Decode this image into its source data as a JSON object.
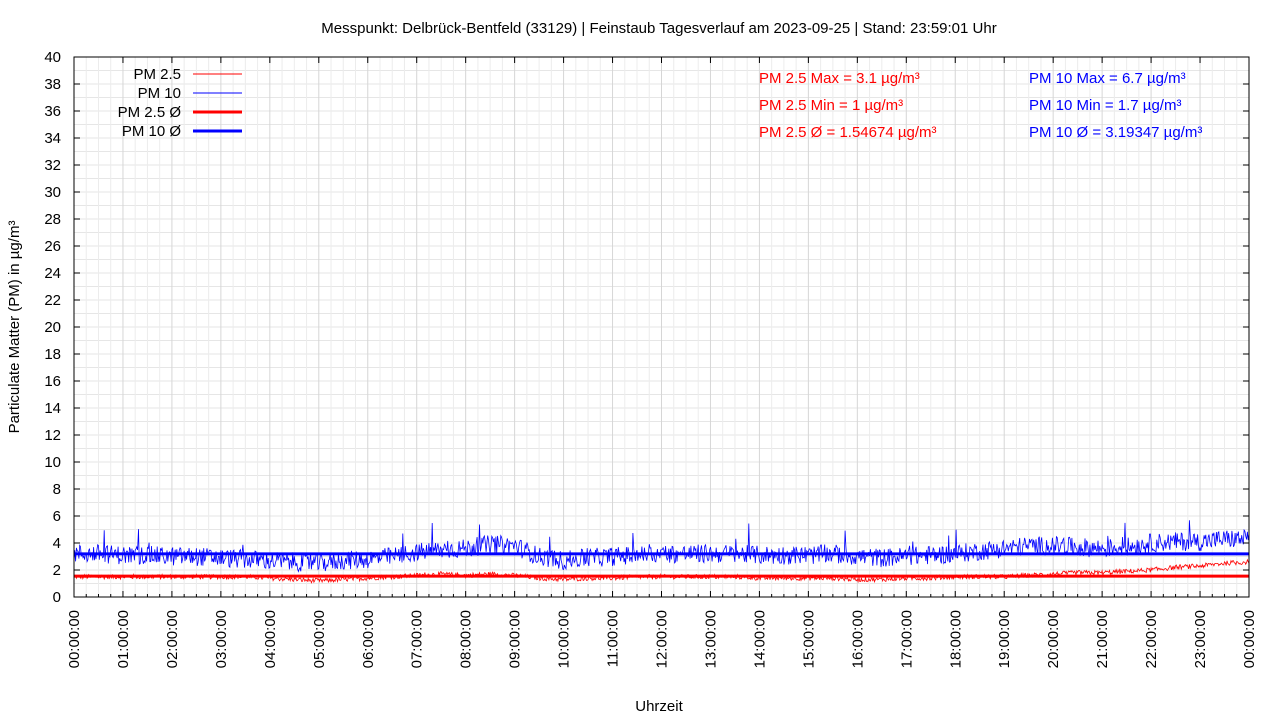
{
  "chart_data": {
    "type": "line",
    "title": "Messpunkt: Delbrück-Bentfeld (33129) | Feinstaub Tagesverlauf am 2023-09-25 | Stand: 23:59:01 Uhr",
    "xlabel": "Uhrzeit",
    "ylabel": "Particulate Matter (PM) in µg/m³",
    "xlim": [
      "00:00:00",
      "24:00:00"
    ],
    "ylim": [
      0,
      40
    ],
    "y_ticks": [
      0,
      2,
      4,
      6,
      8,
      10,
      12,
      14,
      16,
      18,
      20,
      22,
      24,
      26,
      28,
      30,
      32,
      34,
      36,
      38,
      40
    ],
    "x_ticks": [
      "00:00:00",
      "01:00:00",
      "02:00:00",
      "03:00:00",
      "04:00:00",
      "05:00:00",
      "06:00:00",
      "07:00:00",
      "08:00:00",
      "09:00:00",
      "10:00:00",
      "11:00:00",
      "12:00:00",
      "13:00:00",
      "14:00:00",
      "15:00:00",
      "16:00:00",
      "17:00:00",
      "18:00:00",
      "19:00:00",
      "20:00:00",
      "21:00:00",
      "22:00:00",
      "23:00:00",
      "00:00:00"
    ],
    "grid": true,
    "legend_position": "top-left",
    "series": [
      {
        "name": "PM 2.5",
        "color": "#ff0000",
        "x_hours": [
          0,
          0.5,
          1,
          1.5,
          2,
          2.5,
          3,
          3.5,
          4,
          4.5,
          5,
          5.5,
          6,
          6.5,
          7,
          7.5,
          8,
          8.5,
          9,
          9.5,
          10,
          10.5,
          11,
          11.5,
          12,
          12.5,
          13,
          13.5,
          14,
          14.5,
          15,
          15.5,
          16,
          16.5,
          17,
          17.5,
          18,
          18.5,
          19,
          19.5,
          20,
          20.5,
          21,
          21.5,
          22,
          22.5,
          23,
          23.5,
          24
        ],
        "values": [
          1.5,
          1.5,
          1.5,
          1.5,
          1.5,
          1.5,
          1.5,
          1.5,
          1.4,
          1.3,
          1.2,
          1.3,
          1.4,
          1.5,
          1.6,
          1.7,
          1.6,
          1.7,
          1.6,
          1.4,
          1.3,
          1.4,
          1.4,
          1.5,
          1.5,
          1.5,
          1.5,
          1.5,
          1.4,
          1.4,
          1.4,
          1.4,
          1.3,
          1.3,
          1.4,
          1.4,
          1.5,
          1.5,
          1.5,
          1.6,
          1.7,
          1.8,
          1.8,
          1.9,
          2.0,
          2.2,
          2.3,
          2.5,
          2.6
        ]
      },
      {
        "name": "PM 10",
        "color": "#0000ff",
        "x_hours": [
          0,
          0.5,
          1,
          1.5,
          2,
          2.5,
          3,
          3.5,
          4,
          4.5,
          5,
          5.5,
          6,
          6.5,
          7,
          7.5,
          8,
          8.5,
          9,
          9.5,
          10,
          10.5,
          11,
          11.5,
          12,
          12.5,
          13,
          13.5,
          14,
          14.5,
          15,
          15.5,
          16,
          16.5,
          17,
          17.5,
          18,
          18.5,
          19,
          19.5,
          20,
          20.5,
          21,
          21.5,
          22,
          22.5,
          23,
          23.5,
          24
        ],
        "values": [
          3.2,
          3.2,
          3.1,
          3.1,
          3.0,
          3.0,
          2.9,
          2.8,
          2.7,
          2.6,
          2.5,
          2.7,
          2.8,
          3.0,
          3.3,
          3.5,
          3.6,
          3.9,
          3.8,
          3.0,
          2.7,
          2.9,
          3.0,
          3.1,
          3.2,
          3.2,
          3.2,
          3.2,
          3.1,
          3.1,
          3.1,
          3.2,
          3.0,
          2.9,
          3.0,
          3.1,
          3.2,
          3.4,
          3.6,
          3.8,
          3.8,
          3.7,
          3.6,
          3.7,
          4.0,
          4.1,
          4.1,
          4.3,
          4.3
        ]
      },
      {
        "name": "PM 2.5 Ø",
        "color": "#ff0000",
        "value": 1.54674
      },
      {
        "name": "PM 10 Ø",
        "color": "#0000ff",
        "value": 3.19347
      }
    ],
    "annotations": {
      "pm25": [
        "PM 2.5 Max = 3.1 µg/m³",
        "PM 2.5 Min = 1 µg/m³",
        "PM 2.5 Ø = 1.54674 µg/m³"
      ],
      "pm10": [
        "PM 10 Max = 6.7 µg/m³",
        "PM 10 Min = 1.7 µg/m³",
        "PM 10 Ø = 3.19347 µg/m³"
      ]
    }
  }
}
